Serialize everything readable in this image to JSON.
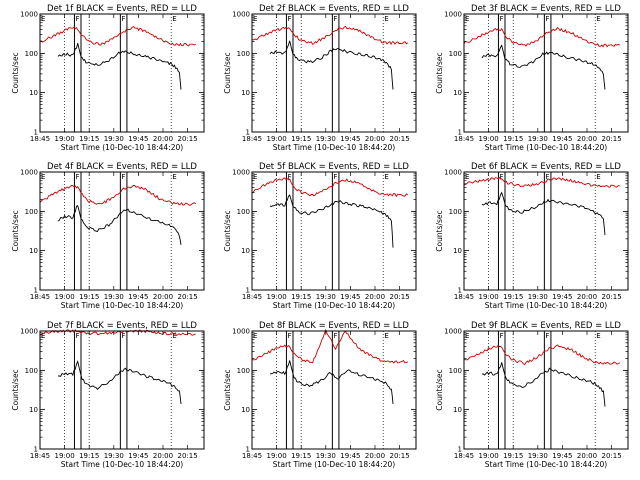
{
  "colors": {
    "events": "#000000",
    "lld": "#d00000",
    "axes": "#000000"
  },
  "chart_data": {
    "type": "line",
    "grid": "vertical dotted lines at 19:00, 19:15, 20:05",
    "y_scale": "log",
    "ylim": [
      1,
      1000
    ],
    "xlim": [
      "18:45",
      "20:25"
    ],
    "ylabel": "Counts/sec",
    "xlabel": "Start Time (10-Dec-10 18:44:20)",
    "x_ticks": [
      "18:45",
      "19:00",
      "19:15",
      "19:30",
      "19:45",
      "20:00",
      "20:15"
    ],
    "y_ticks": [
      "1",
      "10",
      "100",
      "1000"
    ],
    "markers": {
      "F_intervals": [
        [
          "19:06",
          "19:10"
        ],
        [
          "19:34",
          "19:38"
        ]
      ],
      "F_label": "F",
      "E_times": [
        "18:45",
        "20:05"
      ],
      "E_label": "E"
    },
    "panels": [
      {
        "title": "Det 1f BLACK = Events, RED = LLD",
        "series": [
          {
            "name": "Events",
            "x": [
              "18:56",
              "19:00",
              "19:05",
              "19:08",
              "19:10",
              "19:13",
              "19:20",
              "19:27",
              "19:33",
              "19:37",
              "19:43",
              "19:50",
              "19:57",
              "20:03",
              "20:07",
              "20:10",
              "20:11"
            ],
            "y": [
              85,
              95,
              90,
              170,
              80,
              60,
              50,
              65,
              100,
              110,
              95,
              80,
              70,
              58,
              48,
              35,
              12
            ]
          },
          {
            "name": "LLD",
            "x": [
              "18:45",
              "18:52",
              "19:00",
              "19:05",
              "19:08",
              "19:10",
              "19:15",
              "19:22",
              "19:30",
              "19:36",
              "19:42",
              "19:50",
              "19:58",
              "20:05",
              "20:13",
              "20:20"
            ],
            "y": [
              190,
              260,
              380,
              450,
              420,
              300,
              200,
              165,
              240,
              360,
              450,
              360,
              230,
              175,
              165,
              170
            ]
          }
        ]
      },
      {
        "title": "Det 2f BLACK = Events, RED = LLD",
        "series": [
          {
            "name": "Events",
            "x": [
              "18:56",
              "19:00",
              "19:05",
              "19:08",
              "19:10",
              "19:13",
              "19:20",
              "19:27",
              "19:33",
              "19:37",
              "19:43",
              "19:50",
              "19:57",
              "20:03",
              "20:07",
              "20:10",
              "20:11"
            ],
            "y": [
              100,
              110,
              100,
              200,
              95,
              70,
              60,
              75,
              115,
              130,
              110,
              95,
              85,
              70,
              55,
              40,
              12
            ]
          },
          {
            "name": "LLD",
            "x": [
              "18:45",
              "18:52",
              "19:00",
              "19:05",
              "19:08",
              "19:10",
              "19:15",
              "19:22",
              "19:30",
              "19:36",
              "19:42",
              "19:50",
              "19:58",
              "20:05",
              "20:13",
              "20:20"
            ],
            "y": [
              210,
              280,
              390,
              460,
              430,
              310,
              210,
              180,
              260,
              380,
              470,
              380,
              250,
              190,
              180,
              185
            ]
          }
        ]
      },
      {
        "title": "Det 3f BLACK = Events, RED = LLD",
        "series": [
          {
            "name": "Events",
            "x": [
              "18:56",
              "19:00",
              "19:05",
              "19:08",
              "19:10",
              "19:13",
              "19:20",
              "19:27",
              "19:33",
              "19:37",
              "19:43",
              "19:50",
              "19:57",
              "20:03",
              "20:07",
              "20:10",
              "20:11"
            ],
            "y": [
              80,
              90,
              85,
              160,
              75,
              55,
              45,
              60,
              95,
              105,
              90,
              75,
              65,
              55,
              45,
              30,
              12
            ]
          },
          {
            "name": "LLD",
            "x": [
              "18:45",
              "18:52",
              "19:00",
              "19:05",
              "19:08",
              "19:10",
              "19:15",
              "19:22",
              "19:30",
              "19:36",
              "19:42",
              "19:50",
              "19:58",
              "20:05",
              "20:13",
              "20:20"
            ],
            "y": [
              180,
              240,
              350,
              420,
              390,
              280,
              190,
              160,
              220,
              340,
              420,
              340,
              220,
              165,
              155,
              160
            ]
          }
        ]
      },
      {
        "title": "Det 4f BLACK = Events, RED = LLD",
        "series": [
          {
            "name": "Events",
            "x": [
              "18:56",
              "19:00",
              "19:05",
              "19:08",
              "19:10",
              "19:13",
              "19:20",
              "19:27",
              "19:33",
              "19:37",
              "19:43",
              "19:50",
              "19:57",
              "20:03",
              "20:07",
              "20:10",
              "20:11"
            ],
            "y": [
              60,
              75,
              70,
              150,
              65,
              40,
              32,
              45,
              80,
              110,
              90,
              70,
              55,
              45,
              38,
              25,
              14
            ]
          },
          {
            "name": "LLD",
            "x": [
              "18:45",
              "18:52",
              "19:00",
              "19:05",
              "19:08",
              "19:10",
              "19:15",
              "19:22",
              "19:30",
              "19:36",
              "19:42",
              "19:50",
              "19:58",
              "20:05",
              "20:13",
              "20:20"
            ],
            "y": [
              170,
              260,
              380,
              450,
              420,
              280,
              180,
              150,
              230,
              380,
              430,
              350,
              210,
              165,
              150,
              155
            ]
          }
        ]
      },
      {
        "title": "Det 5f BLACK = Events, RED = LLD",
        "series": [
          {
            "name": "Events",
            "x": [
              "18:56",
              "19:00",
              "19:05",
              "19:08",
              "19:10",
              "19:13",
              "19:20",
              "19:27",
              "19:33",
              "19:37",
              "19:43",
              "19:50",
              "19:57",
              "20:03",
              "20:07",
              "20:10",
              "20:11"
            ],
            "y": [
              130,
              150,
              145,
              280,
              140,
              100,
              85,
              110,
              150,
              180,
              160,
              140,
              120,
              100,
              80,
              60,
              12
            ]
          },
          {
            "name": "LLD",
            "x": [
              "18:45",
              "18:52",
              "19:00",
              "19:05",
              "19:08",
              "19:10",
              "19:15",
              "19:22",
              "19:30",
              "19:36",
              "19:42",
              "19:50",
              "19:58",
              "20:05",
              "20:13",
              "20:20"
            ],
            "y": [
              300,
              450,
              620,
              680,
              620,
              420,
              300,
              260,
              360,
              520,
              640,
              520,
              340,
              270,
              260,
              265
            ]
          }
        ]
      },
      {
        "title": "Det 6f BLACK = Events, RED = LLD",
        "series": [
          {
            "name": "Events",
            "x": [
              "18:56",
              "19:00",
              "19:05",
              "19:08",
              "19:10",
              "19:13",
              "19:20",
              "19:27",
              "19:33",
              "19:37",
              "19:43",
              "19:50",
              "19:57",
              "20:03",
              "20:07",
              "20:10",
              "20:11"
            ],
            "y": [
              140,
              165,
              155,
              300,
              150,
              110,
              95,
              120,
              165,
              190,
              170,
              150,
              130,
              105,
              85,
              65,
              25
            ]
          },
          {
            "name": "LLD",
            "x": [
              "18:45",
              "18:52",
              "19:00",
              "19:05",
              "19:08",
              "19:10",
              "19:15",
              "19:22",
              "19:30",
              "19:36",
              "19:42",
              "19:50",
              "19:58",
              "20:05",
              "20:13",
              "20:20"
            ],
            "y": [
              480,
              580,
              650,
              700,
              660,
              560,
              480,
              450,
              500,
              620,
              700,
              620,
              500,
              450,
              430,
              440
            ]
          }
        ]
      },
      {
        "title": "Det 7f BLACK = Events, RED = LLD",
        "series": [
          {
            "name": "Events",
            "x": [
              "18:56",
              "19:00",
              "19:05",
              "19:08",
              "19:10",
              "19:13",
              "19:20",
              "19:27",
              "19:33",
              "19:37",
              "19:43",
              "19:50",
              "19:57",
              "20:03",
              "20:07",
              "20:10",
              "20:11"
            ],
            "y": [
              70,
              85,
              80,
              160,
              70,
              45,
              35,
              50,
              85,
              110,
              90,
              70,
              58,
              48,
              38,
              28,
              14
            ]
          },
          {
            "name": "LLD",
            "x": [
              "18:45",
              "18:52",
              "19:00",
              "19:05",
              "19:08",
              "19:10",
              "19:15",
              "19:22",
              "19:30",
              "19:36",
              "19:42",
              "19:50",
              "19:58",
              "20:05",
              "20:13",
              "20:20"
            ],
            "y": [
              850,
              950,
              1000,
              1000,
              1000,
              950,
              880,
              850,
              900,
              980,
              1000,
              980,
              880,
              840,
              830,
              840
            ]
          }
        ]
      },
      {
        "title": "Det 8f BLACK = Events, RED = LLD",
        "series": [
          {
            "name": "Events",
            "x": [
              "18:56",
              "19:00",
              "19:05",
              "19:08",
              "19:10",
              "19:13",
              "19:20",
              "19:27",
              "19:33",
              "19:37",
              "19:43",
              "19:50",
              "19:57",
              "20:03",
              "20:07",
              "20:10",
              "20:11"
            ],
            "y": [
              80,
              90,
              85,
              165,
              75,
              50,
              40,
              55,
              90,
              60,
              100,
              80,
              65,
              55,
              45,
              32,
              14
            ]
          },
          {
            "name": "LLD",
            "x": [
              "18:45",
              "18:52",
              "19:00",
              "19:05",
              "19:08",
              "19:10",
              "19:15",
              "19:22",
              "19:30",
              "19:36",
              "19:42",
              "19:50",
              "19:58",
              "20:05",
              "20:13",
              "20:20"
            ],
            "y": [
              180,
              250,
              360,
              430,
              400,
              280,
              190,
              160,
              1000,
              350,
              1000,
              360,
              230,
              170,
              160,
              165
            ]
          }
        ]
      },
      {
        "title": "Det 9f BLACK = Events, RED = LLD",
        "series": [
          {
            "name": "Events",
            "x": [
              "18:56",
              "19:00",
              "19:05",
              "19:08",
              "19:10",
              "19:13",
              "19:20",
              "19:27",
              "19:33",
              "19:37",
              "19:43",
              "19:50",
              "19:57",
              "20:03",
              "20:07",
              "20:10",
              "20:11"
            ],
            "y": [
              75,
              85,
              80,
              155,
              70,
              48,
              38,
              52,
              85,
              105,
              88,
              72,
              60,
              50,
              40,
              28,
              12
            ]
          },
          {
            "name": "LLD",
            "x": [
              "18:45",
              "18:52",
              "19:00",
              "19:05",
              "19:08",
              "19:10",
              "19:15",
              "19:22",
              "19:30",
              "19:36",
              "19:42",
              "19:50",
              "19:58",
              "20:05",
              "20:13",
              "20:20"
            ],
            "y": [
              170,
              240,
              350,
              420,
              390,
              270,
              180,
              150,
              220,
              340,
              420,
              340,
              215,
              160,
              150,
              155
            ]
          }
        ]
      }
    ]
  }
}
